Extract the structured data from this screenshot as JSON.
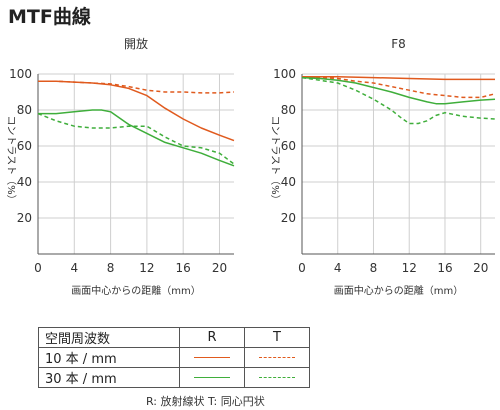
{
  "title": "MTF曲線",
  "chart_data": [
    {
      "type": "line",
      "title": "開放",
      "xlabel": "画面中心からの距離（mm）",
      "ylabel": "コントラスト（%）",
      "xlim": [
        0,
        21.6
      ],
      "ylim": [
        0,
        100
      ],
      "xticks": [
        0,
        4,
        8,
        12,
        16,
        20
      ],
      "yticks": [
        20,
        40,
        60,
        80,
        100
      ],
      "grid": true,
      "series": [
        {
          "name": "10本/mm R",
          "color": "#e05a1e",
          "dash": "solid",
          "x": [
            0,
            2,
            4,
            6,
            8,
            10,
            12,
            14,
            16,
            18,
            20,
            21.6
          ],
          "y": [
            96,
            96,
            95.5,
            95,
            94,
            92,
            88,
            81,
            75,
            70,
            66,
            63
          ]
        },
        {
          "name": "10本/mm T",
          "color": "#e05a1e",
          "dash": "dashed",
          "x": [
            0,
            2,
            4,
            6,
            8,
            10,
            12,
            14,
            16,
            18,
            20,
            21.6
          ],
          "y": [
            96,
            96,
            95.5,
            95,
            94.5,
            93,
            91,
            90,
            90,
            89.5,
            89.5,
            90
          ]
        },
        {
          "name": "30本/mm R",
          "color": "#3fae3b",
          "dash": "solid",
          "x": [
            0,
            2,
            4,
            6,
            7,
            8,
            10,
            12,
            14,
            16,
            18,
            20,
            21.6
          ],
          "y": [
            78,
            78,
            79,
            80,
            80,
            79,
            72,
            67,
            62,
            59,
            56,
            52,
            49
          ]
        },
        {
          "name": "30本/mm T",
          "color": "#3fae3b",
          "dash": "dashed",
          "x": [
            0,
            2,
            4,
            6,
            8,
            10,
            12,
            14,
            16,
            18,
            20,
            21.6
          ],
          "y": [
            78,
            74,
            71,
            70,
            70,
            71,
            71,
            65,
            60,
            59,
            56,
            50
          ]
        }
      ]
    },
    {
      "type": "line",
      "title": "F8",
      "xlabel": "画面中心からの距離（mm）",
      "ylabel": "コントラスト（%）",
      "xlim": [
        0,
        21.6
      ],
      "ylim": [
        0,
        100
      ],
      "xticks": [
        0,
        4,
        8,
        12,
        16,
        20
      ],
      "yticks": [
        20,
        40,
        60,
        80,
        100
      ],
      "grid": true,
      "series": [
        {
          "name": "10本/mm R",
          "color": "#e05a1e",
          "dash": "solid",
          "x": [
            0,
            4,
            8,
            12,
            16,
            20,
            21.6
          ],
          "y": [
            98.5,
            98.5,
            98,
            97.5,
            97,
            97,
            97
          ]
        },
        {
          "name": "10本/mm T",
          "color": "#e05a1e",
          "dash": "dashed",
          "x": [
            0,
            2,
            4,
            6,
            8,
            10,
            12,
            14,
            16,
            18,
            20,
            21.6
          ],
          "y": [
            98.5,
            98,
            97.5,
            96,
            95,
            93,
            91,
            89,
            88,
            87,
            87,
            89
          ]
        },
        {
          "name": "30本/mm R",
          "color": "#3fae3b",
          "dash": "solid",
          "x": [
            0,
            2,
            4,
            6,
            8,
            10,
            12,
            14,
            15,
            16,
            18,
            20,
            21.6
          ],
          "y": [
            98,
            97.5,
            96.5,
            95,
            92.5,
            90,
            87,
            84.5,
            83.5,
            83.5,
            84.5,
            85.5,
            86
          ]
        },
        {
          "name": "30本/mm T",
          "color": "#3fae3b",
          "dash": "dashed",
          "x": [
            0,
            2,
            4,
            6,
            8,
            10,
            11,
            12,
            13,
            14,
            15,
            16,
            18,
            20,
            21.6
          ],
          "y": [
            98,
            96.5,
            95,
            91,
            86,
            80,
            76,
            72.5,
            72.5,
            74,
            77,
            78.5,
            76.5,
            75.5,
            75
          ]
        }
      ]
    }
  ],
  "legend": {
    "header": "空間周波数",
    "col_r": "R",
    "col_t": "T",
    "rows": [
      {
        "label": "10 本 / mm",
        "color": "#e05a1e"
      },
      {
        "label": "30 本 / mm",
        "color": "#3fae3b"
      }
    ]
  },
  "note": "R: 放射線状  T: 同心円状"
}
